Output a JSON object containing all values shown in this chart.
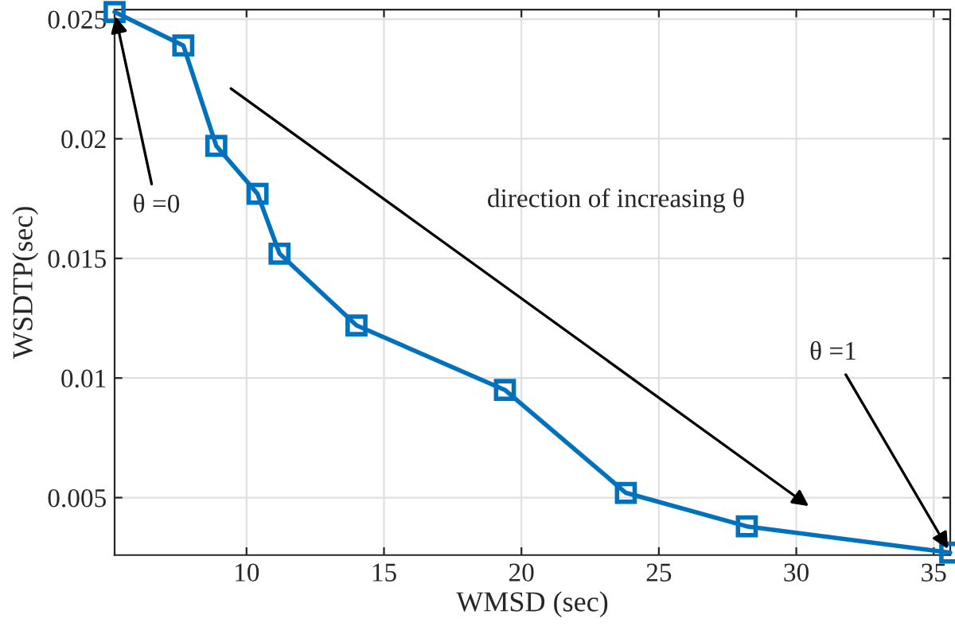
{
  "chart_data": {
    "type": "line",
    "xlabel": "WMSD (sec)",
    "ylabel": "WSDTP(sec)",
    "x": [
      5.2,
      7.7,
      8.9,
      10.4,
      11.2,
      14.0,
      19.4,
      23.8,
      28.2,
      35.6
    ],
    "series": [
      {
        "color": "#0072bd",
        "values": [
          0.0253,
          0.0239,
          0.0197,
          0.0177,
          0.0152,
          0.0122,
          0.0095,
          0.0052,
          0.0038,
          0.0027
        ]
      }
    ],
    "xlim": [
      5.2,
      35.6
    ],
    "ylim": [
      0.0026,
      0.0254
    ],
    "xticks": [
      10,
      15,
      20,
      25,
      30,
      35
    ],
    "yticks": [
      0.005,
      0.01,
      0.015,
      0.02,
      0.025
    ],
    "grid": true,
    "marker": "square",
    "line_style": "solid",
    "annotations": [
      {
        "text": "θ =0",
        "x": 5.2,
        "y": 0.0253
      },
      "direction of increasing θ",
      {
        "text": "θ =1",
        "x": 35.6,
        "y": 0.0027
      }
    ]
  }
}
